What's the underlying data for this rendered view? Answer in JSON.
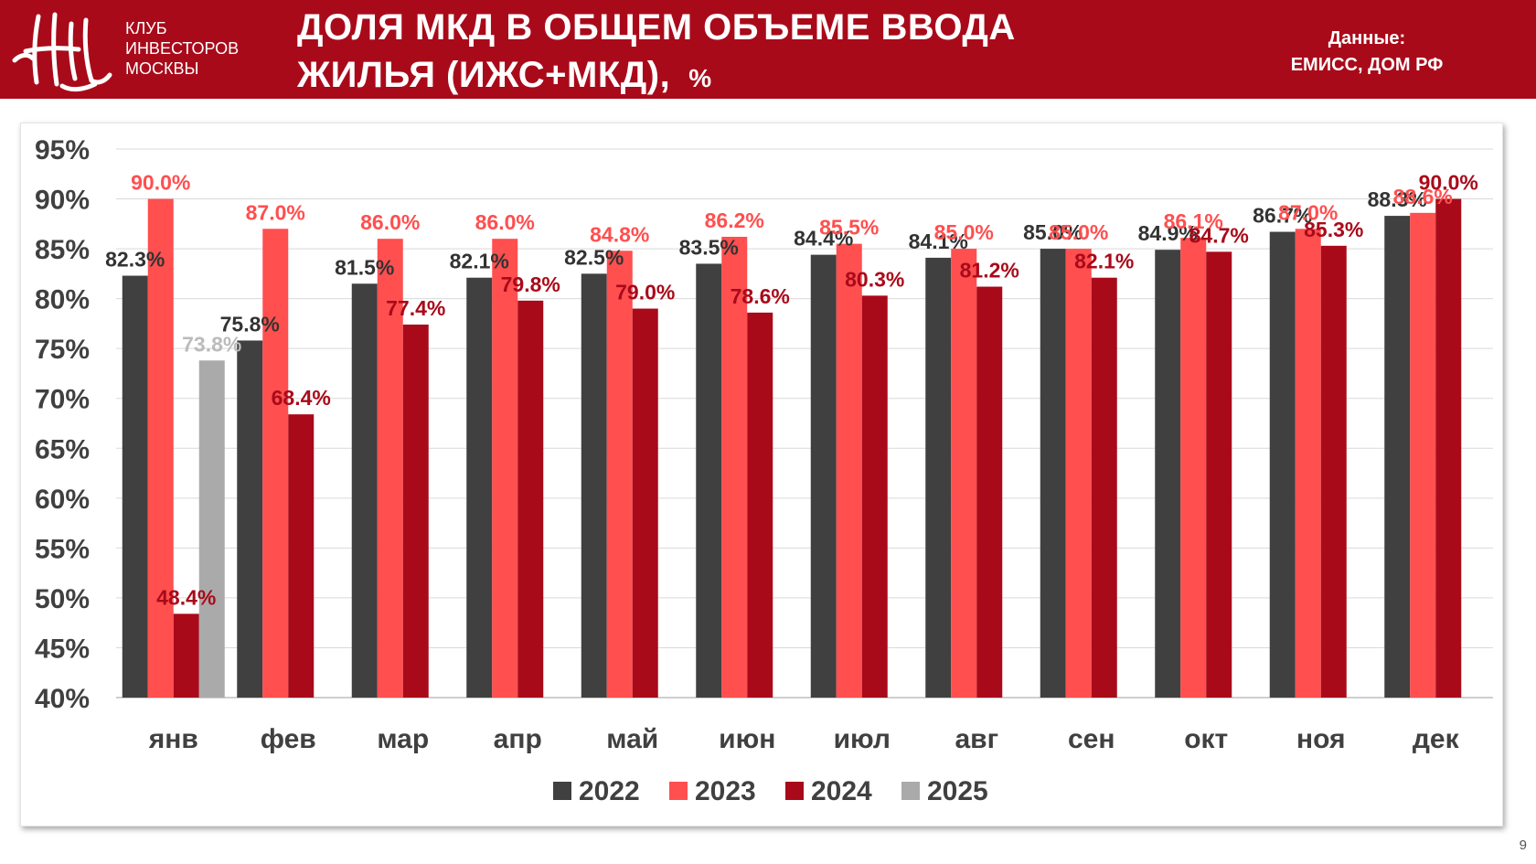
{
  "header": {
    "club_lines": [
      "КЛУБ",
      "ИНВЕСТОРОВ",
      "МОСКВЫ"
    ],
    "title_line1": "ДОЛЯ МКД В ОБЩЕМ ОБЪЕМЕ ВВОДА",
    "title_line2": "ЖИЛЬЯ (ИЖС+МКД),",
    "title_unit": "%",
    "source_label": "Данные:",
    "source_text": "ЕМИСС, ДОМ РФ"
  },
  "page_number": "9",
  "colors": {
    "brand": "#a90a1a",
    "s2022": "#404040",
    "s2023": "#ff4f4f",
    "s2024": "#a90a1a",
    "s2025": "#aaaaaa"
  },
  "chart_data": {
    "type": "bar",
    "categories": [
      "янв",
      "фев",
      "мар",
      "апр",
      "май",
      "июн",
      "июл",
      "авг",
      "сен",
      "окт",
      "ноя",
      "дек"
    ],
    "series": [
      {
        "name": "2022",
        "color": "#404040",
        "label_color": "#333333",
        "values": [
          82.3,
          75.8,
          81.5,
          82.1,
          82.5,
          83.5,
          84.4,
          84.1,
          85.0,
          84.9,
          86.7,
          88.3
        ]
      },
      {
        "name": "2023",
        "color": "#ff4f4f",
        "label_color": "#ff4f4f",
        "values": [
          90.0,
          87.0,
          86.0,
          86.0,
          84.8,
          86.2,
          85.5,
          85.0,
          85.0,
          86.1,
          87.0,
          88.6
        ]
      },
      {
        "name": "2024",
        "color": "#a90a1a",
        "label_color": "#a90a1a",
        "values": [
          48.4,
          68.4,
          77.4,
          79.8,
          79.0,
          78.6,
          80.3,
          81.2,
          82.1,
          84.7,
          85.3,
          90.0
        ]
      },
      {
        "name": "2025",
        "color": "#aaaaaa",
        "label_color": "#bbbbbb",
        "values": [
          73.8,
          null,
          null,
          null,
          null,
          null,
          null,
          null,
          null,
          null,
          null,
          null
        ]
      }
    ],
    "yticks": [
      "40%",
      "45%",
      "50%",
      "55%",
      "60%",
      "65%",
      "70%",
      "75%",
      "80%",
      "85%",
      "90%",
      "95%"
    ],
    "ylim": [
      40,
      95
    ],
    "grid": true,
    "legend_position": "bottom"
  }
}
